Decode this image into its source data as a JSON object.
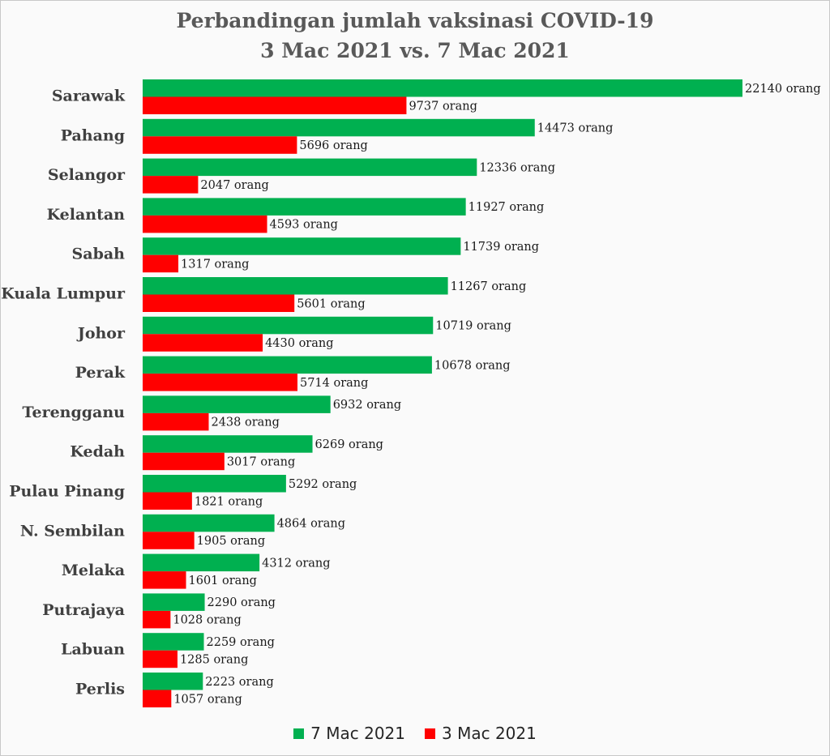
{
  "colors": {
    "series1": "#00b050",
    "series2": "#ff0000"
  },
  "chart_data": {
    "type": "bar",
    "orientation": "horizontal",
    "title": "Perbandingan jumlah vaksinasi COVID-19",
    "subtitle": "3 Mac 2021 vs. 7 Mac 2021",
    "value_suffix": " orang",
    "legend_position": "bottom",
    "grid": false,
    "xlim": [
      0,
      22140
    ],
    "categories": [
      "Sarawak",
      "Pahang",
      "Selangor",
      "Kelantan",
      "Sabah",
      "Kuala Lumpur",
      "Johor",
      "Perak",
      "Terengganu",
      "Kedah",
      "Pulau Pinang",
      "N. Sembilan",
      "Melaka",
      "Putrajaya",
      "Labuan",
      "Perlis"
    ],
    "series": [
      {
        "name": "7 Mac 2021",
        "values": [
          22140,
          14473,
          12336,
          11927,
          11739,
          11267,
          10719,
          10678,
          6932,
          6269,
          5292,
          4864,
          4312,
          2290,
          2259,
          2223
        ]
      },
      {
        "name": "3 Mac 2021",
        "values": [
          9737,
          5696,
          2047,
          4593,
          1317,
          5601,
          4430,
          5714,
          2438,
          3017,
          1821,
          1905,
          1601,
          1028,
          1285,
          1057
        ]
      }
    ]
  }
}
